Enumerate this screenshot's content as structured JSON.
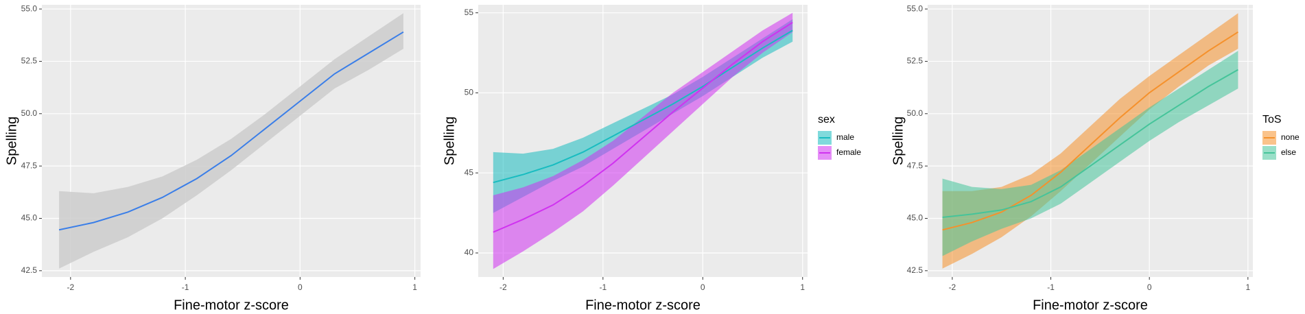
{
  "chart_data": [
    {
      "type": "line",
      "x_label": "Fine-motor z-score",
      "y_label": "Spelling",
      "x": [
        -2.1,
        -1.8,
        -1.5,
        -1.2,
        -0.9,
        -0.6,
        -0.3,
        0,
        0.3,
        0.6,
        0.9
      ],
      "xlim": [
        -2.25,
        1.05
      ],
      "xticks": [
        -2,
        -1,
        0,
        1
      ],
      "ylim": [
        42.2,
        55.2
      ],
      "yticks": [
        42.5,
        {
          "value": 45,
          "label": "45.0"
        },
        47.5,
        {
          "value": 50,
          "label": "50.0"
        },
        52.5,
        {
          "value": 55,
          "label": "55.0"
        }
      ],
      "grid": true,
      "ribbon_color": "#cccccc",
      "series": [
        {
          "color": "#3a7ee8",
          "values": [
            44.45,
            44.8,
            45.3,
            46.0,
            46.9,
            48.0,
            49.3,
            50.6,
            51.9,
            52.9,
            53.9
          ],
          "lower": [
            42.6,
            43.4,
            44.1,
            45.0,
            46.1,
            47.3,
            48.6,
            49.9,
            51.2,
            52.1,
            53.1
          ],
          "upper": [
            46.3,
            46.2,
            46.5,
            47.0,
            47.8,
            48.8,
            50.0,
            51.3,
            52.6,
            53.7,
            54.8
          ]
        }
      ]
    },
    {
      "type": "line",
      "x_label": "Fine-motor z-score",
      "y_label": "Spelling",
      "legend_title": "sex",
      "x": [
        -2.1,
        -1.8,
        -1.5,
        -1.2,
        -0.9,
        -0.6,
        -0.3,
        0,
        0.3,
        0.6,
        0.9
      ],
      "xlim": [
        -2.25,
        1.05
      ],
      "xticks": [
        -2,
        -1,
        0,
        1
      ],
      "ylim": [
        38.5,
        55.5
      ],
      "yticks": [
        40,
        45,
        50,
        55
      ],
      "grid": true,
      "series": [
        {
          "name": "male",
          "color": "#18bcc0",
          "values": [
            44.4,
            44.9,
            45.5,
            46.3,
            47.3,
            48.3,
            49.3,
            50.4,
            51.6,
            52.8,
            53.9
          ],
          "lower": [
            42.5,
            43.5,
            44.5,
            45.4,
            46.5,
            47.6,
            48.7,
            49.8,
            51.0,
            52.2,
            53.2
          ],
          "upper": [
            46.3,
            46.2,
            46.5,
            47.2,
            48.1,
            49.0,
            49.9,
            51.0,
            52.2,
            53.4,
            54.6
          ]
        },
        {
          "name": "female",
          "color": "#d032f0",
          "values": [
            41.3,
            42.1,
            43.0,
            44.2,
            45.6,
            47.2,
            48.8,
            50.3,
            51.8,
            53.2,
            54.4
          ],
          "lower": [
            39.0,
            40.1,
            41.3,
            42.6,
            44.2,
            45.9,
            47.6,
            49.3,
            51.0,
            52.5,
            53.8
          ],
          "upper": [
            43.6,
            44.1,
            44.8,
            45.8,
            47.0,
            48.5,
            50.0,
            51.3,
            52.6,
            53.9,
            55.0
          ]
        }
      ]
    },
    {
      "type": "line",
      "x_label": "Fine-motor z-score",
      "y_label": "Spelling",
      "legend_title": "ToS",
      "x": [
        -2.1,
        -1.8,
        -1.5,
        -1.2,
        -0.9,
        -0.6,
        -0.3,
        0,
        0.3,
        0.6,
        0.9
      ],
      "xlim": [
        -2.25,
        1.05
      ],
      "xticks": [
        -2,
        -1,
        0,
        1
      ],
      "ylim": [
        42.2,
        55.2
      ],
      "yticks": [
        42.5,
        {
          "value": 45,
          "label": "45.0"
        },
        47.5,
        {
          "value": 50,
          "label": "50.0"
        },
        52.5,
        {
          "value": 55,
          "label": "55.0"
        }
      ],
      "grid": true,
      "series": [
        {
          "name": "none",
          "color": "#f5912c",
          "values": [
            44.45,
            44.8,
            45.3,
            46.1,
            47.2,
            48.5,
            49.8,
            51.0,
            52.0,
            53.0,
            53.9
          ],
          "lower": [
            42.6,
            43.3,
            44.1,
            45.1,
            46.3,
            47.6,
            48.9,
            50.2,
            51.3,
            52.3,
            53.1
          ],
          "upper": [
            46.3,
            46.3,
            46.5,
            47.1,
            48.1,
            49.4,
            50.7,
            51.8,
            52.8,
            53.8,
            54.8
          ]
        },
        {
          "name": "else",
          "color": "#45c49a",
          "values": [
            45.05,
            45.2,
            45.4,
            45.8,
            46.5,
            47.5,
            48.5,
            49.5,
            50.4,
            51.3,
            52.1
          ],
          "lower": [
            43.2,
            43.9,
            44.5,
            45.0,
            45.7,
            46.7,
            47.7,
            48.7,
            49.6,
            50.4,
            51.2
          ],
          "upper": [
            46.9,
            46.5,
            46.4,
            46.6,
            47.3,
            48.3,
            49.3,
            50.3,
            51.2,
            52.1,
            53.0
          ]
        }
      ]
    }
  ]
}
